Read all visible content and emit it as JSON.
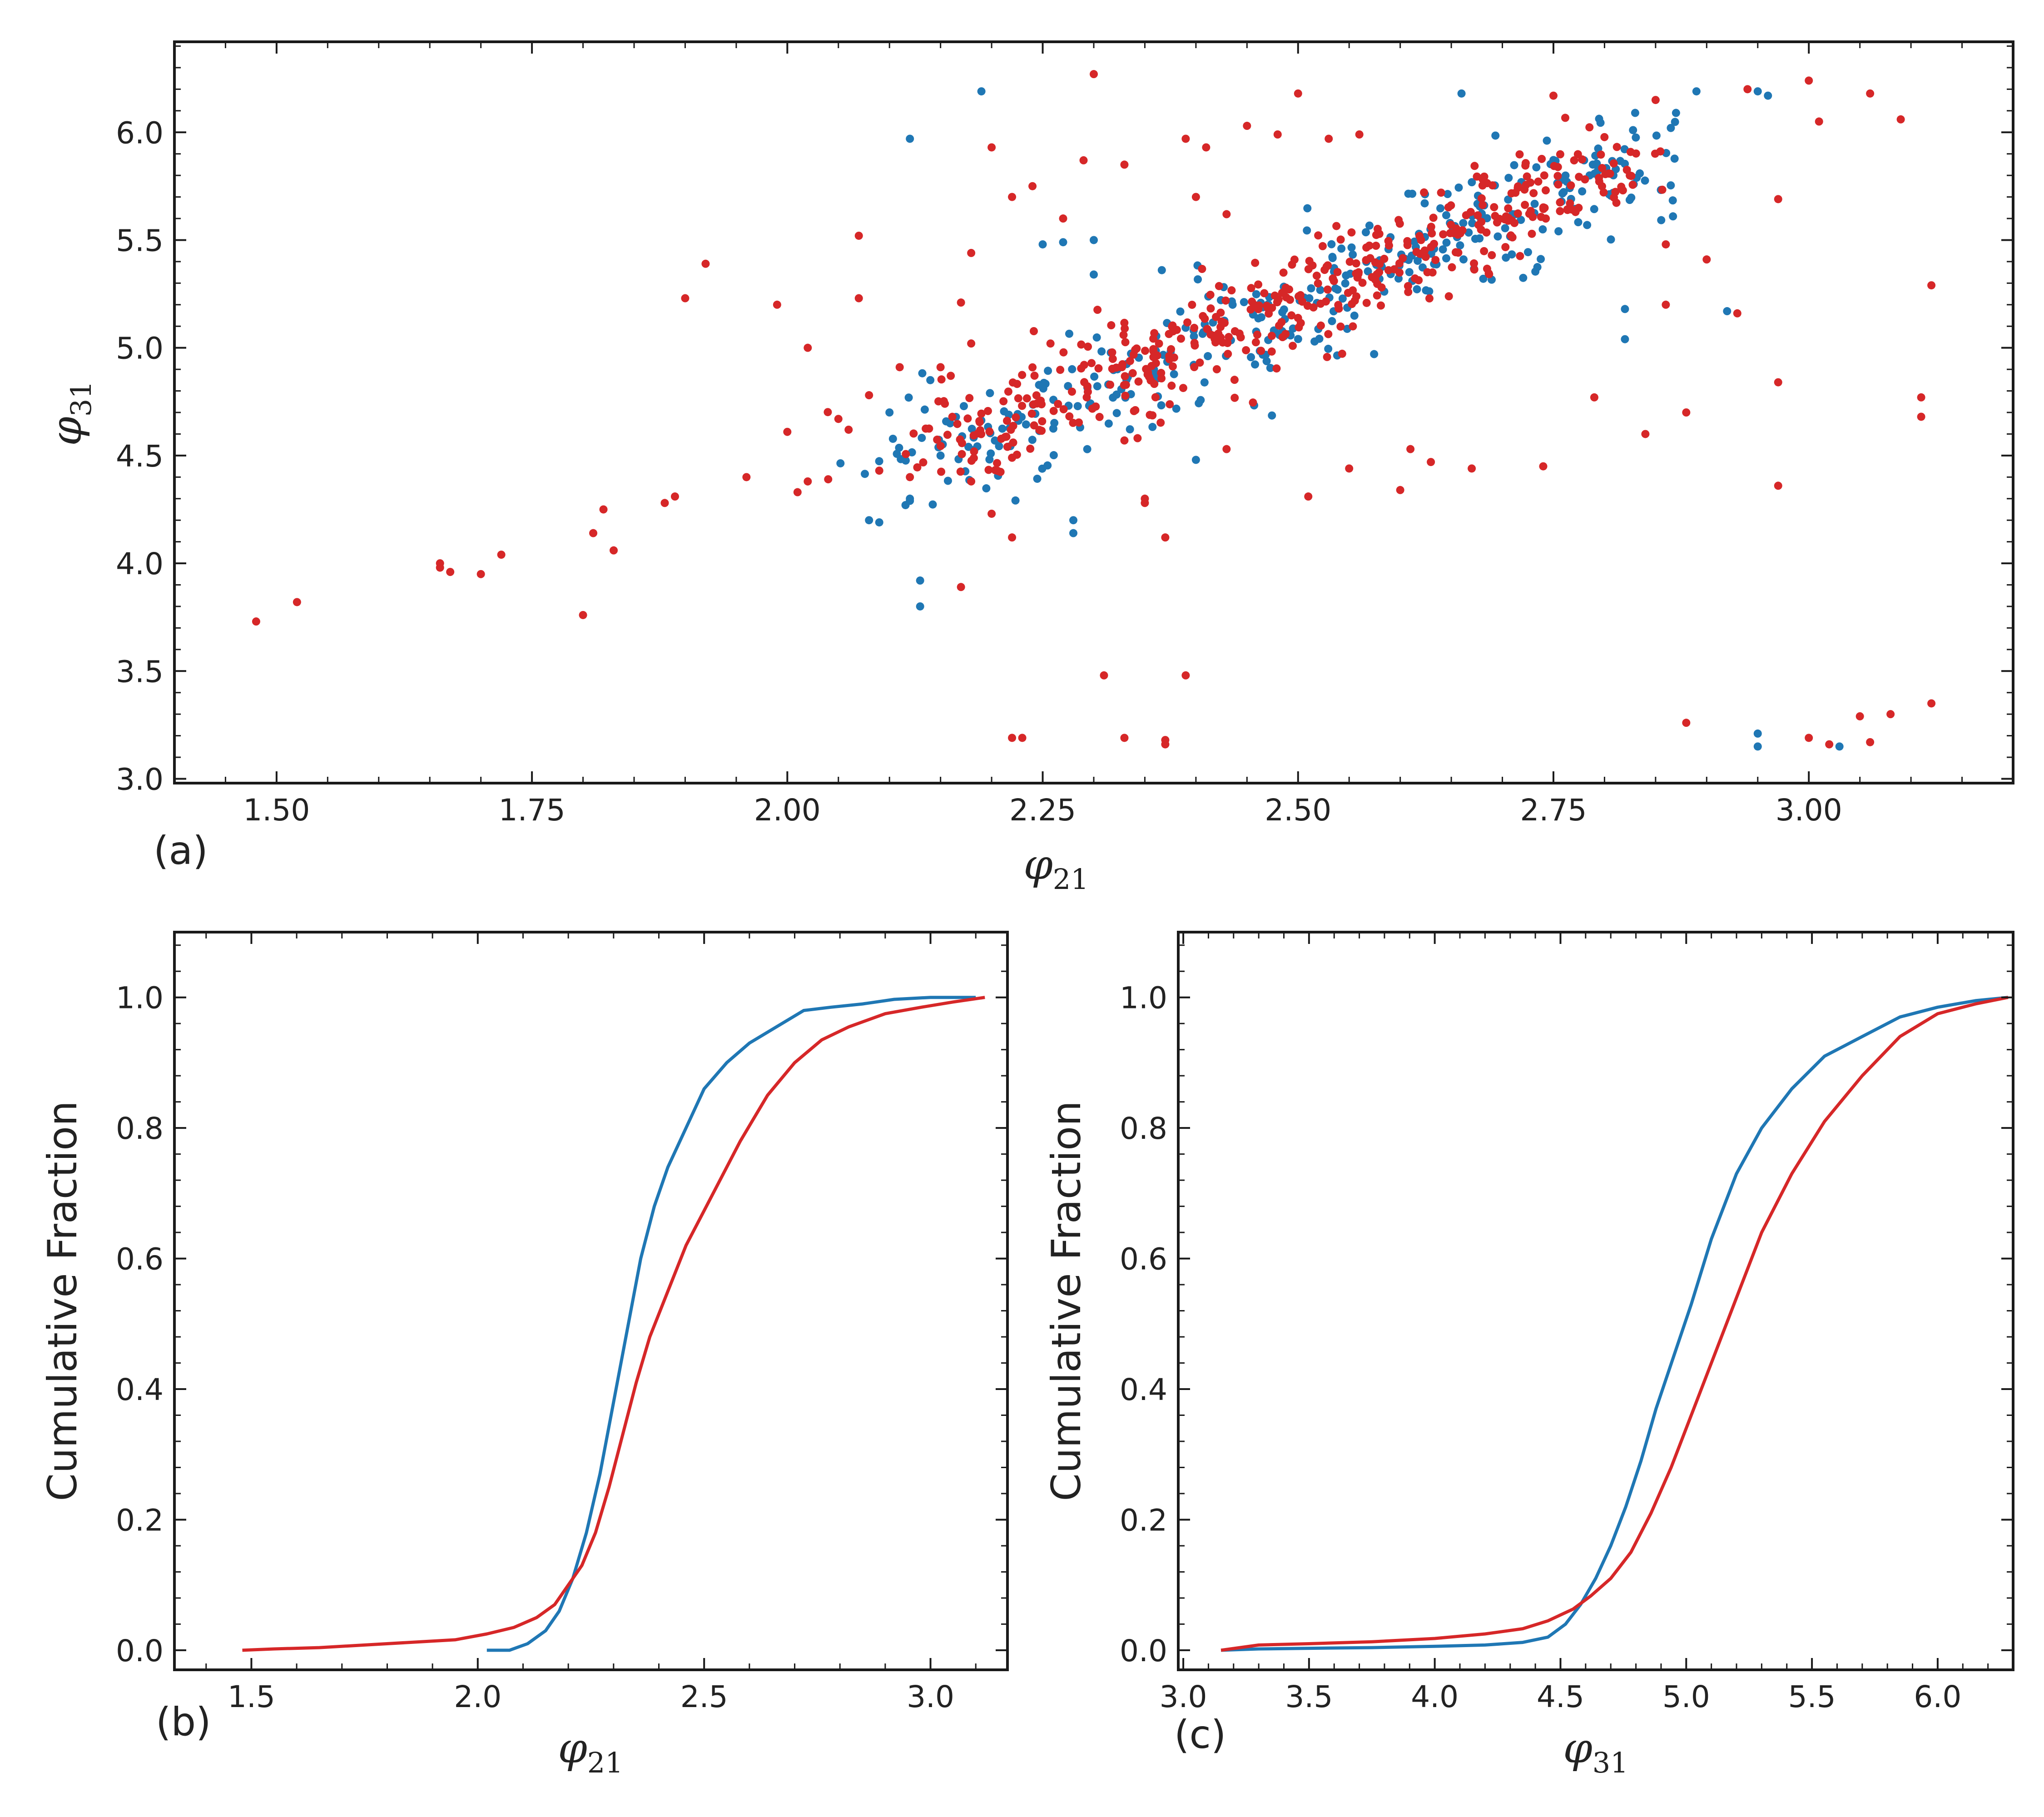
{
  "colors": {
    "blue": "#1f77b4",
    "red": "#d62728",
    "axis": "#1a1a1a"
  },
  "chart_data": [
    {
      "type": "scatter",
      "panel_label": "(a)",
      "xlabel": "φ",
      "xlabel_sub": "21",
      "ylabel": "φ",
      "ylabel_sub": "31",
      "xlim": [
        1.4,
        3.2
      ],
      "ylim": [
        2.98,
        6.42
      ],
      "xticks": [
        1.5,
        1.75,
        2.0,
        2.25,
        2.5,
        2.75,
        3.0
      ],
      "xtick_labels": [
        "1.50",
        "1.75",
        "2.00",
        "2.25",
        "2.50",
        "2.75",
        "3.00"
      ],
      "yticks": [
        3.0,
        3.5,
        4.0,
        4.5,
        5.0,
        5.5,
        6.0
      ],
      "ytick_labels": [
        "3.0",
        "3.5",
        "4.0",
        "4.5",
        "5.0",
        "5.5",
        "6.0"
      ],
      "series": [
        {
          "name": "blue sample",
          "color": "#1f77b4",
          "points": [
            [
              2.19,
              6.19
            ],
            [
              2.12,
              5.97
            ],
            [
              2.66,
              6.18
            ],
            [
              2.89,
              6.19
            ],
            [
              2.95,
              6.19
            ],
            [
              2.83,
              6.09
            ],
            [
              2.87,
              6.09
            ],
            [
              2.96,
              6.17
            ],
            [
              2.13,
              3.92
            ],
            [
              2.13,
              3.8
            ],
            [
              2.28,
              4.2
            ],
            [
              2.08,
              4.2
            ],
            [
              2.09,
              4.19
            ],
            [
              2.12,
              4.3
            ],
            [
              2.12,
              4.29
            ],
            [
              2.95,
              3.21
            ],
            [
              2.95,
              3.15
            ],
            [
              3.03,
              3.15
            ],
            [
              2.92,
              5.17
            ],
            [
              2.82,
              5.04
            ],
            [
              2.82,
              5.18
            ],
            [
              2.4,
              4.48
            ],
            [
              2.28,
              4.14
            ],
            [
              2.15,
              4.5
            ],
            [
              2.3,
              5.34
            ],
            [
              2.27,
              5.49
            ],
            [
              2.25,
              5.48
            ],
            [
              2.3,
              5.5
            ],
            [
              2.78,
              5.87
            ],
            [
              2.71,
              5.62
            ],
            [
              2.1,
              4.7
            ],
            [
              2.14,
              4.85
            ]
          ],
          "core": {
            "x_start": 2.13,
            "x_end": 2.85,
            "y_start": 4.45,
            "y_end": 5.9,
            "n": 360,
            "x_spread": 0.04,
            "y_spread": 0.12
          }
        },
        {
          "name": "red sample",
          "color": "#d62728",
          "points": [
            [
              1.48,
              3.73
            ],
            [
              1.52,
              3.82
            ],
            [
              1.66,
              4.0
            ],
            [
              1.66,
              3.98
            ],
            [
              1.67,
              3.96
            ],
            [
              1.7,
              3.95
            ],
            [
              1.72,
              4.04
            ],
            [
              1.8,
              3.76
            ],
            [
              1.81,
              4.14
            ],
            [
              1.82,
              4.25
            ],
            [
              1.83,
              4.06
            ],
            [
              1.88,
              4.28
            ],
            [
              1.89,
              4.31
            ],
            [
              1.9,
              5.23
            ],
            [
              1.92,
              5.39
            ],
            [
              1.96,
              4.4
            ],
            [
              1.99,
              5.2
            ],
            [
              2.0,
              4.61
            ],
            [
              2.02,
              5.0
            ],
            [
              2.01,
              4.33
            ],
            [
              2.02,
              4.38
            ],
            [
              2.04,
              4.39
            ],
            [
              2.05,
              4.67
            ],
            [
              2.06,
              4.62
            ],
            [
              2.07,
              5.52
            ],
            [
              2.07,
              5.23
            ],
            [
              2.08,
              4.78
            ],
            [
              2.11,
              4.91
            ],
            [
              2.12,
              4.4
            ],
            [
              2.17,
              3.89
            ],
            [
              2.2,
              5.93
            ],
            [
              2.22,
              3.19
            ],
            [
              2.23,
              3.19
            ],
            [
              2.22,
              4.12
            ],
            [
              2.31,
              3.48
            ],
            [
              2.33,
              3.19
            ],
            [
              2.37,
              3.16
            ],
            [
              2.37,
              3.18
            ],
            [
              2.39,
              3.48
            ],
            [
              2.37,
              4.12
            ],
            [
              2.3,
              6.27
            ],
            [
              2.39,
              5.97
            ],
            [
              2.41,
              5.93
            ],
            [
              2.48,
              5.99
            ],
            [
              2.5,
              6.18
            ],
            [
              2.53,
              5.97
            ],
            [
              2.56,
              5.99
            ],
            [
              2.45,
              6.03
            ],
            [
              2.64,
              5.72
            ],
            [
              2.75,
              6.17
            ],
            [
              2.85,
              6.15
            ],
            [
              2.94,
              6.2
            ],
            [
              3.0,
              6.24
            ],
            [
              3.01,
              6.05
            ],
            [
              3.06,
              6.18
            ],
            [
              3.09,
              6.06
            ],
            [
              3.12,
              5.29
            ],
            [
              3.11,
              4.77
            ],
            [
              3.11,
              4.68
            ],
            [
              2.97,
              5.69
            ],
            [
              2.97,
              4.84
            ],
            [
              2.97,
              4.36
            ],
            [
              2.88,
              3.26
            ],
            [
              3.0,
              3.19
            ],
            [
              3.05,
              3.29
            ],
            [
              3.06,
              3.17
            ],
            [
              3.08,
              3.3
            ],
            [
              3.12,
              3.35
            ],
            [
              3.02,
              3.16
            ],
            [
              2.86,
              5.2
            ],
            [
              2.84,
              4.6
            ],
            [
              2.79,
              4.77
            ],
            [
              2.74,
              4.45
            ],
            [
              2.67,
              4.44
            ],
            [
              2.61,
              4.53
            ],
            [
              2.6,
              4.34
            ],
            [
              2.55,
              4.44
            ],
            [
              2.51,
              4.31
            ],
            [
              2.63,
              4.47
            ],
            [
              2.43,
              4.53
            ],
            [
              2.09,
              4.43
            ],
            [
              2.18,
              4.38
            ],
            [
              2.33,
              4.57
            ],
            [
              2.35,
              4.3
            ],
            [
              2.35,
              4.28
            ],
            [
              2.22,
              4.49
            ],
            [
              2.2,
              4.23
            ],
            [
              2.27,
              5.6
            ],
            [
              2.18,
              5.44
            ],
            [
              2.22,
              5.7
            ],
            [
              2.16,
              4.87
            ],
            [
              2.15,
              4.91
            ],
            [
              2.18,
              5.02
            ],
            [
              2.17,
              5.21
            ],
            [
              2.24,
              5.75
            ],
            [
              2.29,
              5.87
            ],
            [
              2.4,
              5.7
            ],
            [
              2.43,
              5.62
            ],
            [
              2.33,
              5.85
            ],
            [
              2.9,
              5.41
            ],
            [
              2.93,
              5.16
            ],
            [
              2.86,
              5.48
            ],
            [
              2.88,
              4.7
            ]
          ],
          "core": {
            "x_start": 2.15,
            "x_end": 2.82,
            "y_start": 4.52,
            "y_end": 5.88,
            "n": 460,
            "x_spread": 0.04,
            "y_spread": 0.1
          }
        }
      ]
    },
    {
      "type": "line",
      "panel_label": "(b)",
      "xlabel": "φ",
      "xlabel_sub": "21",
      "ylabel": "Cumulative Fraction",
      "xlim": [
        1.33,
        3.17
      ],
      "ylim": [
        -0.03,
        1.1
      ],
      "xticks": [
        1.5,
        2.0,
        2.5,
        3.0
      ],
      "xtick_labels": [
        "1.5",
        "2.0",
        "2.5",
        "3.0"
      ],
      "yticks": [
        0.0,
        0.2,
        0.4,
        0.6,
        0.8,
        1.0
      ],
      "ytick_labels": [
        "0.0",
        "0.2",
        "0.4",
        "0.6",
        "0.8",
        "1.0"
      ],
      "series": [
        {
          "name": "blue sample",
          "color": "#1f77b4",
          "x": [
            2.02,
            2.07,
            2.11,
            2.15,
            2.18,
            2.21,
            2.24,
            2.27,
            2.3,
            2.33,
            2.36,
            2.39,
            2.42,
            2.46,
            2.5,
            2.55,
            2.6,
            2.66,
            2.72,
            2.78,
            2.85,
            2.92,
            3.0,
            3.1
          ],
          "y": [
            0.0,
            0.0,
            0.01,
            0.03,
            0.06,
            0.11,
            0.18,
            0.27,
            0.38,
            0.49,
            0.6,
            0.68,
            0.74,
            0.8,
            0.86,
            0.9,
            0.93,
            0.955,
            0.98,
            0.985,
            0.99,
            0.997,
            1.0,
            1.0
          ]
        },
        {
          "name": "red sample",
          "color": "#d62728",
          "x": [
            1.48,
            1.55,
            1.65,
            1.75,
            1.85,
            1.95,
            2.02,
            2.08,
            2.13,
            2.17,
            2.2,
            2.23,
            2.26,
            2.29,
            2.32,
            2.35,
            2.38,
            2.42,
            2.46,
            2.52,
            2.58,
            2.64,
            2.7,
            2.76,
            2.82,
            2.9,
            2.98,
            3.05,
            3.12
          ],
          "y": [
            0.0,
            0.002,
            0.004,
            0.008,
            0.012,
            0.016,
            0.025,
            0.035,
            0.05,
            0.07,
            0.1,
            0.13,
            0.18,
            0.25,
            0.33,
            0.41,
            0.48,
            0.55,
            0.62,
            0.7,
            0.78,
            0.85,
            0.9,
            0.935,
            0.955,
            0.975,
            0.985,
            0.993,
            1.0
          ]
        }
      ]
    },
    {
      "type": "line",
      "panel_label": "(c)",
      "xlabel": "φ",
      "xlabel_sub": "31",
      "ylabel": "Cumulative Fraction",
      "xlim": [
        2.98,
        6.3
      ],
      "ylim": [
        -0.03,
        1.1
      ],
      "xticks": [
        3.0,
        3.5,
        4.0,
        4.5,
        5.0,
        5.5,
        6.0
      ],
      "xtick_labels": [
        "3.0",
        "3.5",
        "4.0",
        "4.5",
        "5.0",
        "5.5",
        "6.0"
      ],
      "yticks": [
        0.0,
        0.2,
        0.4,
        0.6,
        0.8,
        1.0
      ],
      "ytick_labels": [
        "0.0",
        "0.2",
        "0.4",
        "0.6",
        "0.8",
        "1.0"
      ],
      "series": [
        {
          "name": "blue sample",
          "color": "#1f77b4",
          "x": [
            3.15,
            3.3,
            3.5,
            3.75,
            4.0,
            4.2,
            4.35,
            4.45,
            4.52,
            4.58,
            4.64,
            4.7,
            4.76,
            4.82,
            4.88,
            4.95,
            5.02,
            5.1,
            5.2,
            5.3,
            5.42,
            5.55,
            5.7,
            5.85,
            6.0,
            6.15,
            6.28
          ],
          "y": [
            0.0,
            0.002,
            0.003,
            0.004,
            0.006,
            0.008,
            0.012,
            0.02,
            0.04,
            0.07,
            0.11,
            0.16,
            0.22,
            0.29,
            0.37,
            0.45,
            0.53,
            0.63,
            0.73,
            0.8,
            0.86,
            0.91,
            0.94,
            0.97,
            0.985,
            0.995,
            1.0
          ]
        },
        {
          "name": "red sample",
          "color": "#d62728",
          "x": [
            3.15,
            3.3,
            3.5,
            3.75,
            4.0,
            4.2,
            4.35,
            4.45,
            4.55,
            4.62,
            4.7,
            4.78,
            4.86,
            4.94,
            5.02,
            5.1,
            5.2,
            5.3,
            5.42,
            5.55,
            5.7,
            5.85,
            6.0,
            6.15,
            6.28
          ],
          "y": [
            0.0,
            0.008,
            0.01,
            0.013,
            0.018,
            0.025,
            0.033,
            0.045,
            0.063,
            0.083,
            0.11,
            0.15,
            0.21,
            0.28,
            0.36,
            0.44,
            0.54,
            0.64,
            0.73,
            0.81,
            0.88,
            0.94,
            0.975,
            0.99,
            1.0
          ]
        }
      ]
    }
  ]
}
